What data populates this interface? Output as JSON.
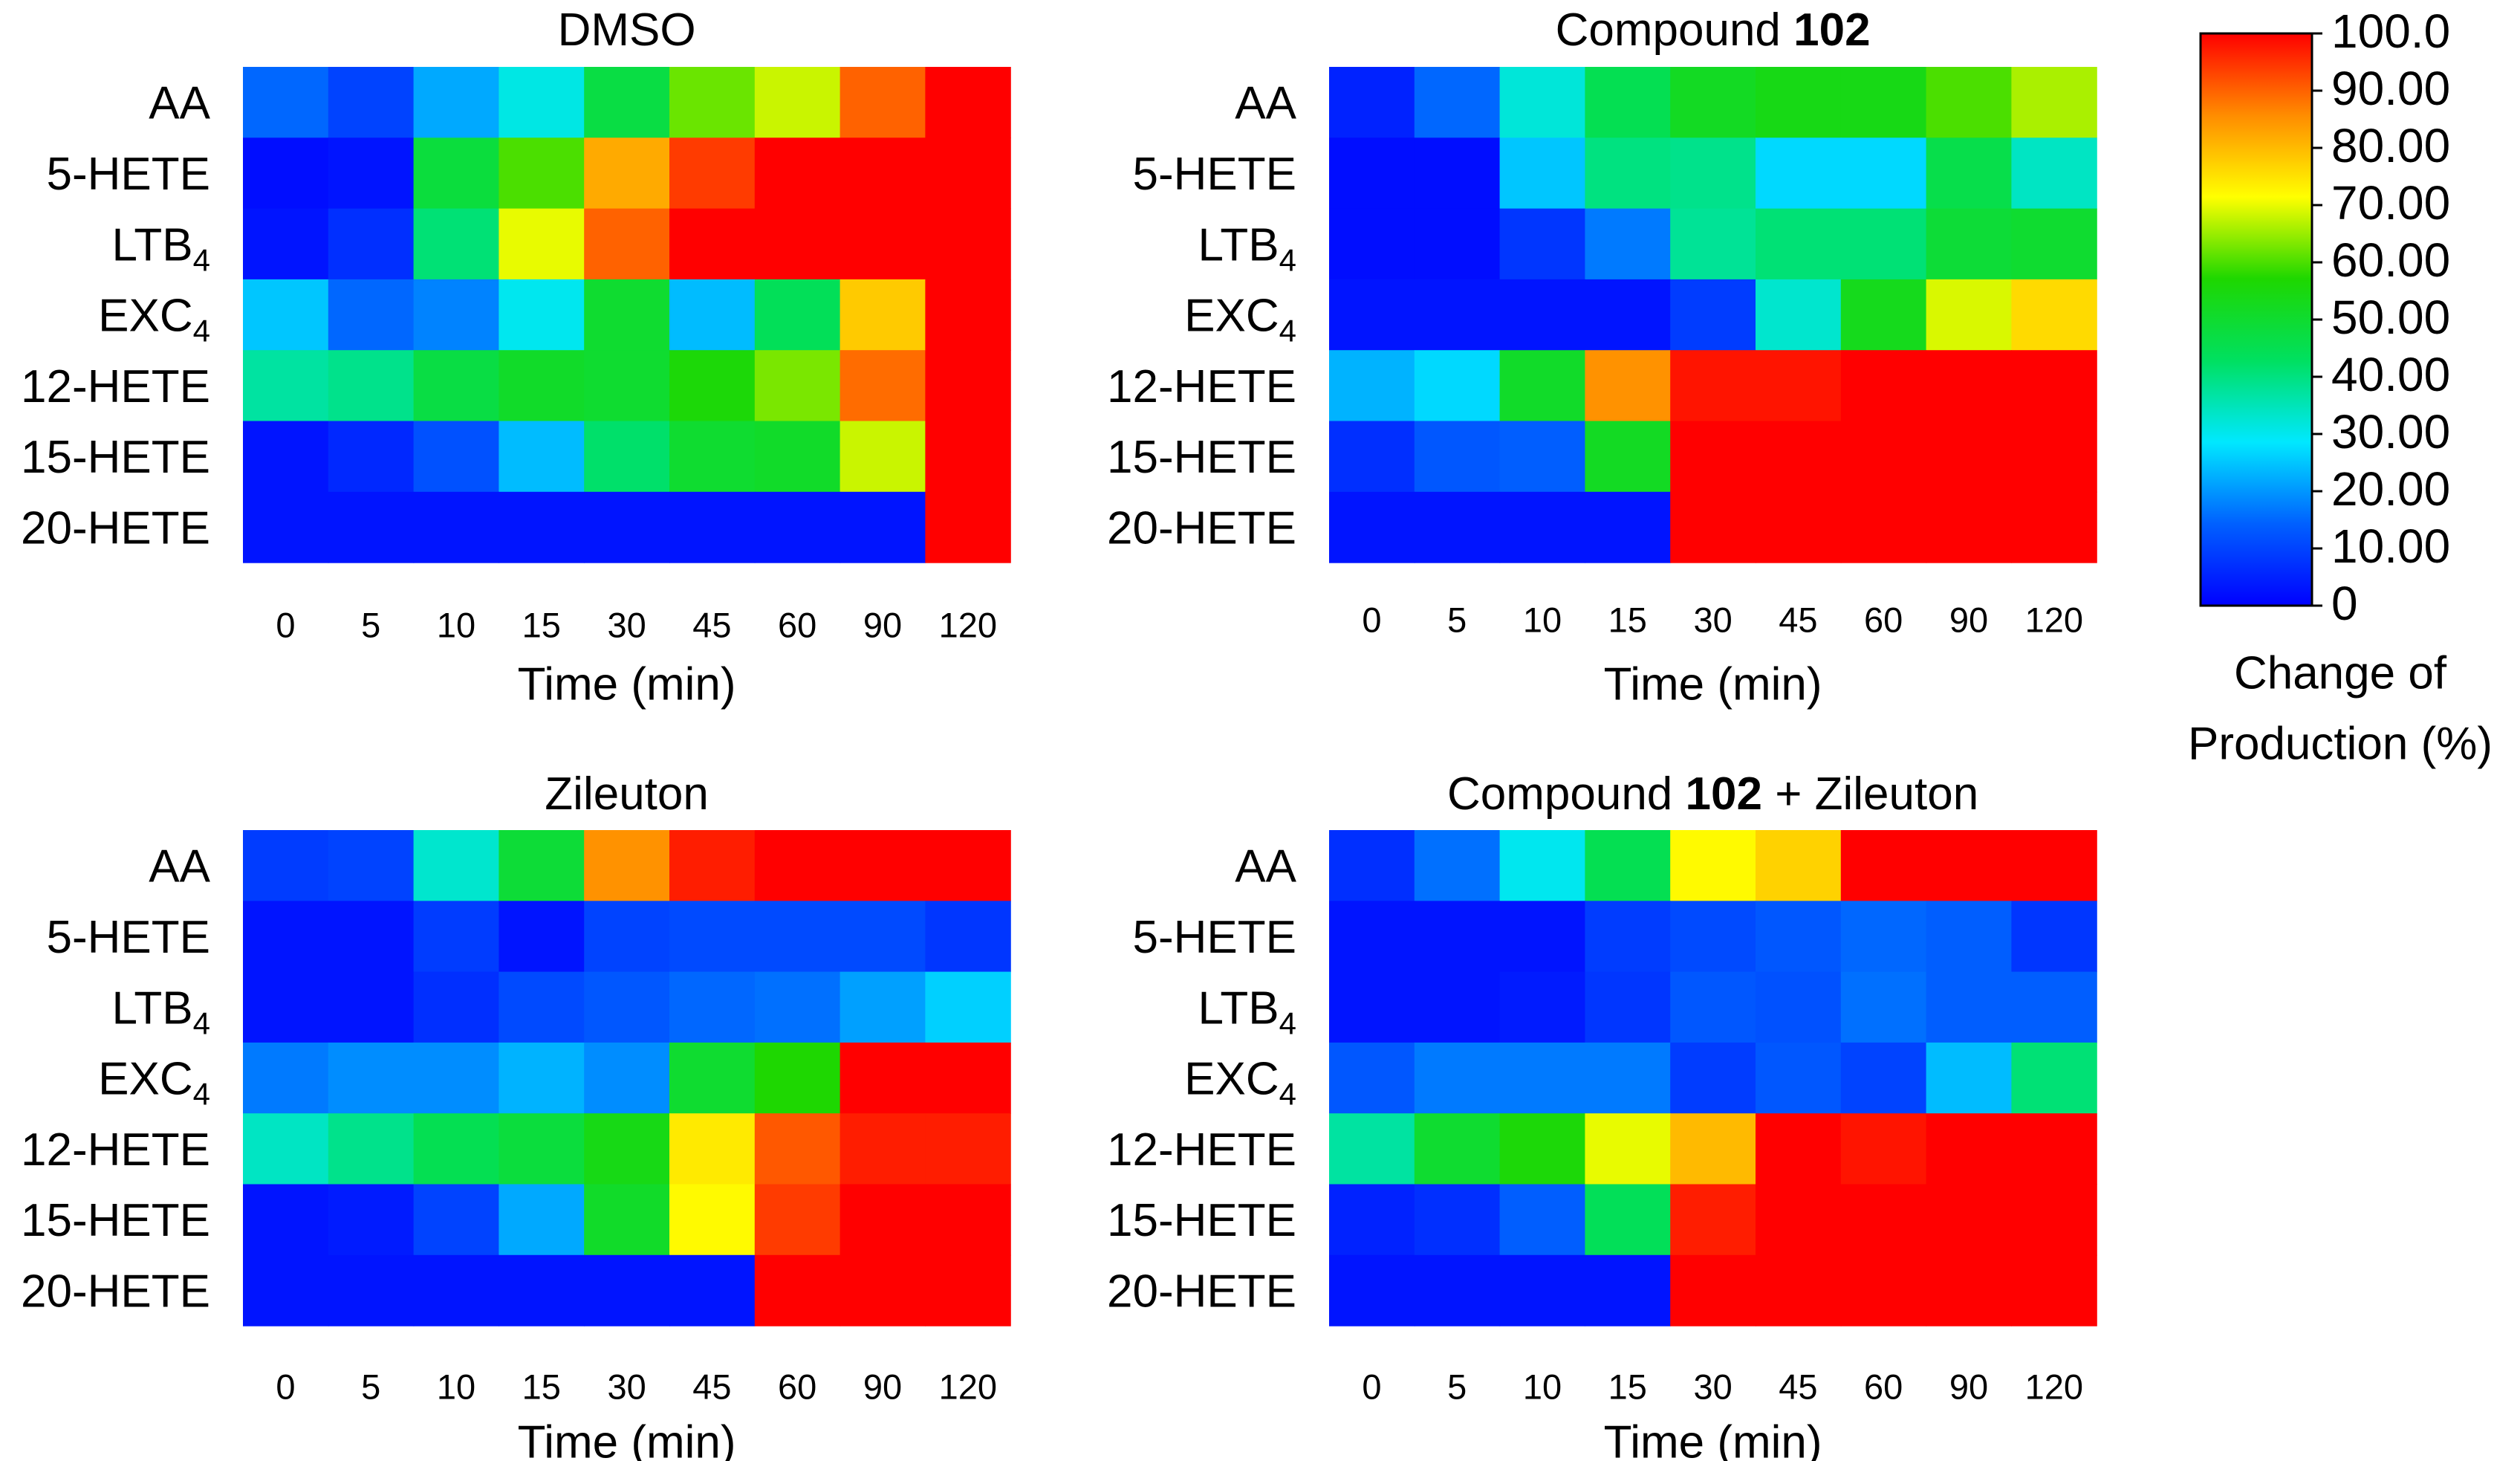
{
  "times": [
    "0",
    "5",
    "10",
    "15",
    "30",
    "45",
    "60",
    "90",
    "120"
  ],
  "x_label": "Time (min)",
  "rows": [
    {
      "name": "AA",
      "sub": ""
    },
    {
      "name": "5-HETE",
      "sub": ""
    },
    {
      "name": "LTB",
      "sub": "4"
    },
    {
      "name": "EXC",
      "sub": "4"
    },
    {
      "name": "12-HETE",
      "sub": ""
    },
    {
      "name": "15-HETE",
      "sub": ""
    },
    {
      "name": "20-HETE",
      "sub": ""
    }
  ],
  "colorbar": {
    "ticks": [
      "100.0",
      "90.00",
      "80.00",
      "70.00",
      "60.00",
      "50.00",
      "40.00",
      "30.00",
      "20.00",
      "10.00",
      "0"
    ],
    "label_line1": "Change of",
    "label_line2": "Production (%)",
    "gradient": [
      "#0000ff",
      "#0060ff",
      "#00e8ff",
      "#00e060",
      "#1ed700",
      "#ffff00",
      "#ff8c00",
      "#ff0000"
    ]
  },
  "chart_data": [
    {
      "type": "heatmap",
      "title": "DMSO",
      "title_bold": "",
      "title_suffix": "",
      "xlabel": "Time (min)",
      "x": [
        "0",
        "5",
        "10",
        "15",
        "30",
        "45",
        "60",
        "90",
        "120"
      ],
      "y": [
        "AA",
        "5-HETE",
        "LTB4",
        "EXC4",
        "12-HETE",
        "15-HETE",
        "20-HETE"
      ],
      "zlim": [
        0,
        100
      ],
      "values": [
        [
          15,
          10,
          22,
          31,
          47,
          62,
          68,
          90,
          100
        ],
        [
          2,
          3,
          48,
          60,
          82,
          94,
          100,
          100,
          100
        ],
        [
          3,
          7,
          41,
          70,
          90,
          100,
          100,
          100,
          100
        ],
        [
          25,
          15,
          18,
          30,
          50,
          24,
          44,
          78,
          100
        ],
        [
          37,
          39,
          47,
          51,
          50,
          56,
          63,
          89,
          100
        ],
        [
          3,
          6,
          12,
          24,
          42,
          50,
          51,
          68,
          100
        ],
        [
          3,
          3,
          3,
          3,
          3,
          3,
          3,
          3,
          100
        ]
      ]
    },
    {
      "type": "heatmap",
      "title": "Compound ",
      "title_bold": "102",
      "title_suffix": "",
      "xlabel": "Time (min)",
      "x": [
        "0",
        "5",
        "10",
        "15",
        "30",
        "45",
        "60",
        "90",
        "120"
      ],
      "y": [
        "AA",
        "5-HETE",
        "LTB4",
        "EXC4",
        "12-HETE",
        "15-HETE",
        "20-HETE"
      ],
      "zlim": [
        0,
        100
      ],
      "values": [
        [
          5,
          15,
          32,
          45,
          52,
          54,
          54,
          60,
          66
        ],
        [
          2,
          2,
          25,
          40,
          39,
          27,
          27,
          46,
          34
        ],
        [
          2,
          2,
          8,
          17,
          38,
          41,
          41,
          49,
          50
        ],
        [
          3,
          3,
          3,
          3,
          9,
          33,
          53,
          69,
          76
        ],
        [
          23,
          27,
          51,
          85,
          98,
          98,
          100,
          100,
          100
        ],
        [
          7,
          13,
          14,
          52,
          100,
          100,
          100,
          100,
          100
        ],
        [
          3,
          3,
          3,
          3,
          100,
          100,
          100,
          100,
          100
        ]
      ]
    },
    {
      "type": "heatmap",
      "title": "Zileuton",
      "title_bold": "",
      "title_suffix": "",
      "xlabel": "Time (min)",
      "x": [
        "0",
        "5",
        "10",
        "15",
        "30",
        "45",
        "60",
        "90",
        "120"
      ],
      "y": [
        "AA",
        "5-HETE",
        "LTB4",
        "EXC4",
        "12-HETE",
        "15-HETE",
        "20-HETE"
      ],
      "zlim": [
        0,
        100
      ],
      "values": [
        [
          9,
          10,
          33,
          49,
          85,
          97,
          100,
          100,
          100
        ],
        [
          3,
          3,
          9,
          3,
          10,
          11,
          11,
          11,
          8
        ],
        [
          3,
          3,
          7,
          11,
          13,
          15,
          16,
          21,
          26
        ],
        [
          17,
          19,
          19,
          23,
          19,
          50,
          57,
          100,
          100
        ],
        [
          34,
          39,
          45,
          48,
          54,
          74,
          91,
          97,
          97
        ],
        [
          3,
          4,
          10,
          22,
          51,
          72,
          94,
          100,
          100
        ],
        [
          3,
          3,
          3,
          3,
          3,
          3,
          100,
          100,
          100
        ]
      ]
    },
    {
      "type": "heatmap",
      "title": "Compound ",
      "title_bold": "102",
      "title_suffix": " + Zileuton",
      "xlabel": "Time (min)",
      "x": [
        "0",
        "5",
        "10",
        "15",
        "30",
        "45",
        "60",
        "90",
        "120"
      ],
      "y": [
        "AA",
        "5-HETE",
        "LTB4",
        "EXC4",
        "12-HETE",
        "15-HETE",
        "20-HETE"
      ],
      "zlim": [
        0,
        100
      ],
      "values": [
        [
          7,
          16,
          30,
          45,
          72,
          77,
          100,
          100,
          100
        ],
        [
          3,
          3,
          3,
          9,
          11,
          13,
          15,
          14,
          8
        ],
        [
          3,
          3,
          4,
          8,
          13,
          12,
          16,
          14,
          14
        ],
        [
          13,
          17,
          17,
          17,
          9,
          13,
          10,
          24,
          41
        ],
        [
          37,
          50,
          56,
          70,
          80,
          100,
          98,
          100,
          100
        ],
        [
          5,
          7,
          14,
          44,
          97,
          100,
          100,
          100,
          100
        ],
        [
          3,
          3,
          3,
          3,
          100,
          100,
          100,
          100,
          100
        ]
      ]
    }
  ]
}
